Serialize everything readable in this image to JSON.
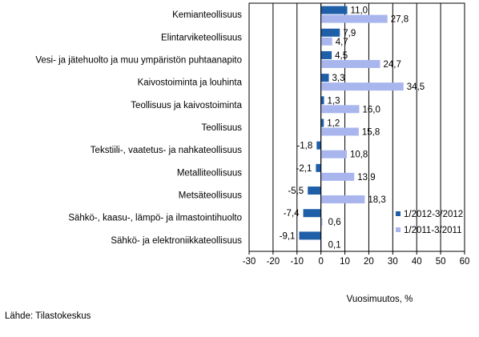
{
  "chart_data": {
    "type": "bar",
    "orientation": "horizontal",
    "categories": [
      "Kemianteollisuus",
      "Elintarviketeollisuus",
      "Vesi- ja jätehuolto ja muu ympäristön puhtaanapito",
      "Kaivostoiminta ja louhinta",
      "Teollisuus ja kaivostoiminta",
      "Teollisuus",
      "Tekstiili-, vaatetus- ja nahkateollisuus",
      "Metalliteollisuus",
      "Metsäteollisuus",
      "Sähkö-, kaasu-, lämpö- ja ilmastointihuolto",
      "Sähkö- ja elektroniikkateollisuus"
    ],
    "series": [
      {
        "name": "1/2012-3/2012",
        "color": "#1f5fa8",
        "values": [
          11.0,
          7.9,
          4.5,
          3.3,
          1.3,
          1.2,
          -1.8,
          -2.1,
          -5.5,
          -7.4,
          -9.1
        ],
        "labels": [
          "11,0",
          "7,9",
          "4,5",
          "3,3",
          "1,3",
          "1,2",
          "-1,8",
          "-2,1",
          "-5,5",
          "-7,4",
          "-9,1"
        ]
      },
      {
        "name": "1/2011-3/2011",
        "color": "#a9b6ee",
        "values": [
          27.8,
          4.7,
          24.7,
          34.5,
          16.0,
          15.8,
          10.8,
          13.9,
          18.3,
          0.6,
          0.1
        ],
        "labels": [
          "27,8",
          "4,7",
          "24,7",
          "34,5",
          "16,0",
          "15,8",
          "10,8",
          "13,9",
          "18,3",
          "0,6",
          "0,1"
        ]
      }
    ],
    "xlim": [
      -30,
      60
    ],
    "xticks": [
      -30,
      -20,
      -10,
      0,
      10,
      20,
      30,
      40,
      50,
      60
    ],
    "xtick_labels": [
      "-30",
      "-20",
      "-10",
      "0",
      "10",
      "20",
      "30",
      "40",
      "50",
      "60"
    ],
    "xlabel": "Vuosimuutos, %",
    "gridlines": "vertical",
    "legend_position": "bottom-right"
  },
  "source": "Lähde: Tilastokeskus"
}
